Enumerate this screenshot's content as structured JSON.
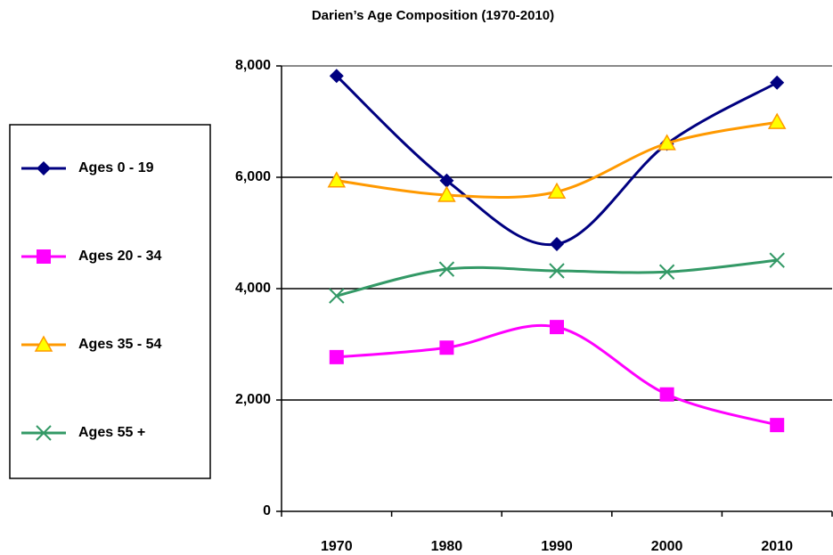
{
  "chart_data": {
    "type": "line",
    "title": "Darien’s Age Composition (1970-2010)",
    "categories": [
      "1970",
      "1980",
      "1990",
      "2000",
      "2010"
    ],
    "series": [
      {
        "name": "Ages 0 - 19",
        "color": "#000080",
        "marker": "diamond",
        "values": [
          7820,
          5940,
          4800,
          6600,
          7700
        ]
      },
      {
        "name": "Ages 20 - 34",
        "color": "#ff00ff",
        "marker": "square",
        "values": [
          2770,
          2940,
          3310,
          2100,
          1550
        ]
      },
      {
        "name": "Ages 35 - 54",
        "color": "#ff9900",
        "marker": "triangle",
        "values": [
          5940,
          5680,
          5740,
          6610,
          6990
        ]
      },
      {
        "name": "Ages 55 +",
        "color": "#339966",
        "marker": "x",
        "values": [
          3870,
          4350,
          4320,
          4300,
          4510
        ]
      }
    ],
    "ylim": [
      0,
      8000
    ],
    "yticks": [
      {
        "value": 0,
        "label": "0"
      },
      {
        "value": 2000,
        "label": "2,000"
      },
      {
        "value": 4000,
        "label": "4,000"
      },
      {
        "value": 6000,
        "label": "6,000"
      },
      {
        "value": 8000,
        "label": "8,000"
      }
    ],
    "grid": true,
    "smooth": true,
    "legend": "left"
  }
}
